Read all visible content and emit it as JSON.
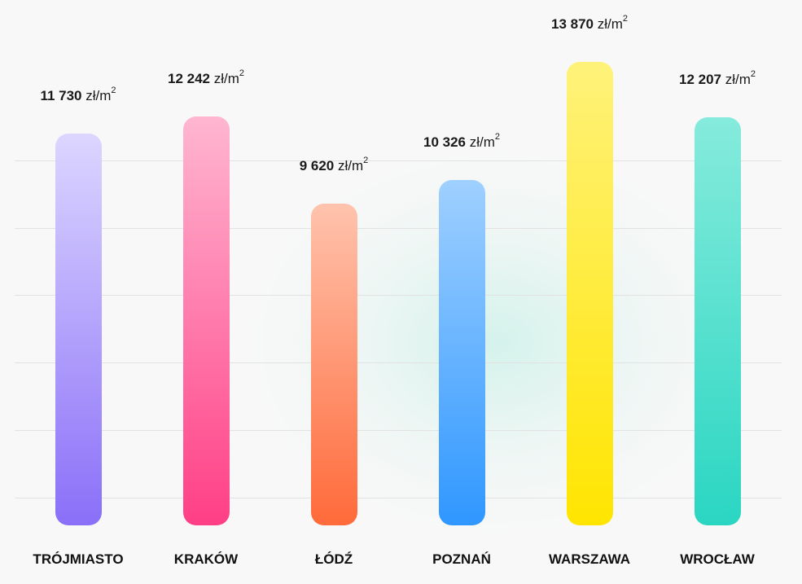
{
  "chart_data": {
    "type": "bar",
    "categories": [
      "TRÓJMIASTO",
      "KRAKÓW",
      "ŁÓDŹ",
      "POZNAŃ",
      "WARSZAWA",
      "WROCŁAW"
    ],
    "values": [
      11730,
      12242,
      9620,
      10326,
      13870,
      12207
    ],
    "value_labels": [
      "11 730",
      "12 242",
      "9 620",
      "10 326",
      "13 870",
      "12 207"
    ],
    "unit": "zł/m",
    "unit_sup": "2",
    "grid": true,
    "colors": [
      [
        "#dcd6ff",
        "#8a6ff8"
      ],
      [
        "#ffb6d0",
        "#ff3f86"
      ],
      [
        "#ffc3ad",
        "#ff6a3a"
      ],
      [
        "#9fd0ff",
        "#2f97ff"
      ],
      [
        "#fff27a",
        "#ffe500"
      ],
      [
        "#86ebdc",
        "#2ad6c2"
      ]
    ]
  }
}
